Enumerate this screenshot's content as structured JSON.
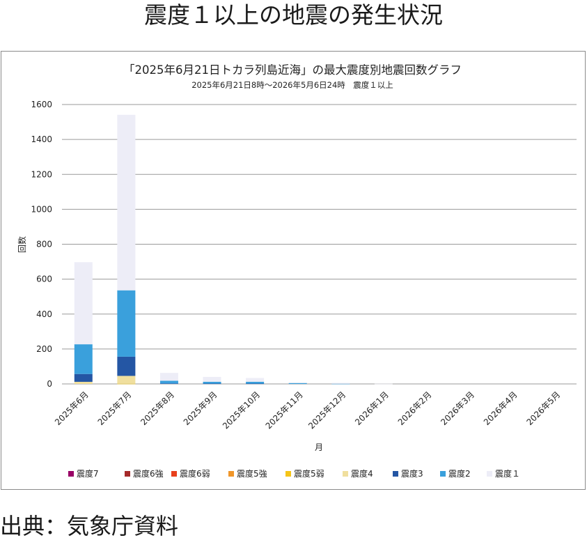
{
  "page": {
    "title": "震度１以上の地震の発生状況",
    "source": "出典：気象庁資料"
  },
  "chart_data": {
    "type": "bar",
    "stacked": true,
    "title": "「2025年6月21日トカラ列島近海」の最大震度別地震回数グラフ",
    "subtitle": "2025年6月21日8時～2026年5月6日24時　震度１以上",
    "xlabel": "月",
    "ylabel": "回数",
    "ylim": [
      0,
      1600
    ],
    "yticks": [
      "0",
      "200",
      "400",
      "600",
      "800",
      "1000",
      "1200",
      "1400",
      "1600"
    ],
    "grid": true,
    "legend_position": "bottom",
    "categories": [
      "2025年6月",
      "2025年7月",
      "2025年8月",
      "2025年9月",
      "2025年10月",
      "2025年11月",
      "2025年12月",
      "2026年1月",
      "2026年2月",
      "2026年3月",
      "2026年4月",
      "2026年5月"
    ],
    "series": [
      {
        "name": "震度7",
        "color": "#990066",
        "values": [
          0,
          0,
          0,
          0,
          0,
          0,
          0,
          0,
          0,
          0,
          0,
          0
        ]
      },
      {
        "name": "震度6強",
        "color": "#a52a2a",
        "values": [
          0,
          0,
          0,
          0,
          0,
          0,
          0,
          0,
          0,
          0,
          0,
          0
        ]
      },
      {
        "name": "震度6弱",
        "color": "#e8401c",
        "values": [
          0,
          0,
          0,
          0,
          0,
          0,
          0,
          0,
          0,
          0,
          0,
          0
        ]
      },
      {
        "name": "震度5強",
        "color": "#f0962a",
        "values": [
          0,
          0,
          0,
          0,
          0,
          0,
          0,
          0,
          0,
          0,
          0,
          0
        ]
      },
      {
        "name": "震度5弱",
        "color": "#f5c518",
        "values": [
          0,
          1,
          0,
          0,
          0,
          0,
          0,
          0,
          0,
          0,
          0,
          0
        ]
      },
      {
        "name": "震度4",
        "color": "#f0df9e",
        "values": [
          12,
          45,
          0,
          0,
          0,
          0,
          0,
          0,
          0,
          0,
          0,
          0
        ]
      },
      {
        "name": "震度3",
        "color": "#2456a4",
        "values": [
          45,
          110,
          3,
          2,
          2,
          0,
          0,
          0,
          0,
          0,
          0,
          0
        ]
      },
      {
        "name": "震度2",
        "color": "#3aa0dc",
        "values": [
          170,
          380,
          15,
          10,
          10,
          5,
          1,
          0,
          0,
          0,
          0,
          0
        ]
      },
      {
        "name": "震度１",
        "color": "#ededf7",
        "values": [
          470,
          1005,
          45,
          28,
          22,
          3,
          5,
          1,
          0,
          0,
          0,
          0
        ]
      }
    ]
  }
}
